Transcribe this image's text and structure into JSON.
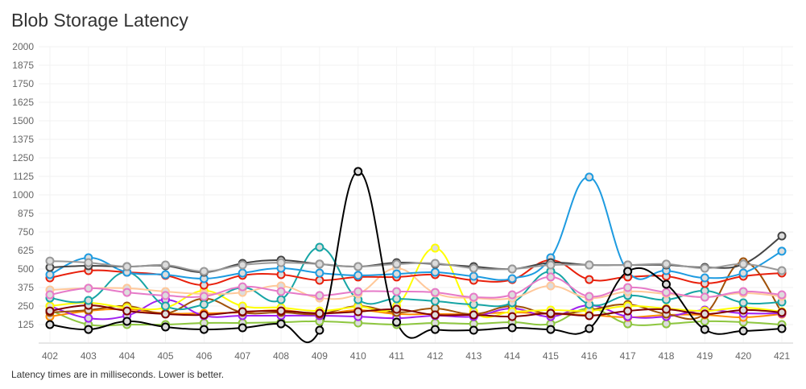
{
  "chart_data": {
    "type": "line",
    "title": "Blob Storage Latency",
    "note": "Latency times are in milliseconds. Lower is better.",
    "xlabel": "",
    "ylabel": "",
    "ylim": [
      0,
      2000
    ],
    "yticks": [
      125,
      250,
      375,
      500,
      625,
      750,
      875,
      1000,
      1125,
      1250,
      1375,
      1500,
      1625,
      1750,
      1875,
      2000
    ],
    "x": [
      402,
      403,
      404,
      405,
      406,
      407,
      408,
      409,
      410,
      411,
      412,
      413,
      414,
      415,
      416,
      417,
      418,
      419,
      420,
      421
    ],
    "grid": true,
    "legend": "none",
    "series": [
      {
        "name": "green",
        "color": "#8dc63f",
        "values": [
          223,
          125,
          125,
          125,
          136,
          136,
          141,
          147,
          136,
          125,
          136,
          130,
          141,
          130,
          234,
          130,
          130,
          147,
          141,
          125
        ]
      },
      {
        "name": "orange",
        "color": "#ff8c00",
        "values": [
          179,
          217,
          228,
          201,
          201,
          207,
          223,
          196,
          223,
          196,
          196,
          196,
          207,
          196,
          190,
          174,
          190,
          190,
          174,
          196
        ]
      },
      {
        "name": "purple",
        "color": "#a020f0",
        "values": [
          250,
          168,
          185,
          293,
          185,
          185,
          185,
          185,
          179,
          168,
          185,
          179,
          234,
          179,
          255,
          179,
          179,
          223,
          201,
          201
        ]
      },
      {
        "name": "brown",
        "color": "#a0520a",
        "values": [
          207,
          223,
          250,
          201,
          300,
          207,
          207,
          196,
          250,
          207,
          234,
          196,
          250,
          196,
          223,
          261,
          196,
          196,
          549,
          207
        ]
      },
      {
        "name": "yellow",
        "color": "#ffff00",
        "values": [
          250,
          272,
          239,
          239,
          353,
          250,
          239,
          217,
          245,
          250,
          641,
          212,
          212,
          223,
          217,
          250,
          234,
          217,
          239,
          212
        ]
      },
      {
        "name": "maroon",
        "color": "#800000",
        "values": [
          217,
          255,
          217,
          196,
          190,
          212,
          217,
          201,
          212,
          228,
          190,
          190,
          179,
          201,
          185,
          217,
          228,
          196,
          223,
          207
        ]
      },
      {
        "name": "teal",
        "color": "#17a5a5",
        "values": [
          304,
          288,
          478,
          250,
          261,
          375,
          293,
          647,
          293,
          299,
          283,
          261,
          272,
          484,
          261,
          321,
          293,
          353,
          272,
          277
        ]
      },
      {
        "name": "peach",
        "color": "#ffc89a",
        "values": [
          359,
          370,
          370,
          348,
          332,
          342,
          386,
          304,
          332,
          505,
          337,
          304,
          304,
          386,
          304,
          348,
          332,
          310,
          337,
          315
        ]
      },
      {
        "name": "pink",
        "color": "#e67ac8",
        "values": [
          326,
          370,
          342,
          321,
          315,
          380,
          348,
          321,
          348,
          348,
          342,
          310,
          326,
          446,
          315,
          375,
          342,
          310,
          348,
          326
        ]
      },
      {
        "name": "red",
        "color": "#e8200c",
        "values": [
          440,
          489,
          478,
          457,
          391,
          457,
          462,
          424,
          446,
          446,
          462,
          424,
          429,
          560,
          429,
          446,
          451,
          402,
          451,
          473
        ]
      },
      {
        "name": "blue",
        "color": "#1e9be0",
        "values": [
          462,
          576,
          478,
          462,
          435,
          473,
          505,
          473,
          457,
          467,
          478,
          451,
          435,
          576,
          1120,
          484,
          489,
          440,
          473,
          620
        ]
      },
      {
        "name": "charcoal",
        "color": "#444444",
        "values": [
          511,
          522,
          516,
          522,
          478,
          538,
          560,
          533,
          516,
          543,
          533,
          516,
          500,
          543,
          527,
          527,
          527,
          511,
          533,
          723
        ]
      },
      {
        "name": "gray",
        "color": "#999999",
        "values": [
          554,
          543,
          516,
          527,
          484,
          527,
          543,
          533,
          516,
          533,
          538,
          505,
          500,
          527,
          527,
          527,
          533,
          505,
          533,
          489
        ]
      },
      {
        "name": "black",
        "color": "#000000",
        "values": [
          125,
          92,
          147,
          109,
          92,
          103,
          130,
          87,
          1158,
          141,
          92,
          87,
          103,
          92,
          98,
          484,
          397,
          92,
          82,
          98
        ]
      }
    ]
  }
}
